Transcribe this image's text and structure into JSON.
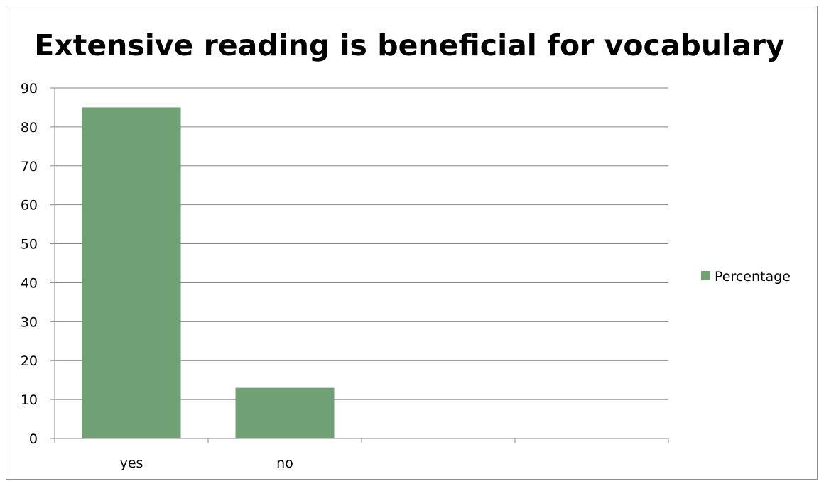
{
  "chart_data": {
    "type": "bar",
    "title": "Extensive reading is beneficial for vocabulary",
    "categories": [
      "yes",
      "no"
    ],
    "series": [
      {
        "name": "Percentage",
        "values": [
          85,
          13
        ],
        "color": "#70a175"
      }
    ],
    "ylim": [
      0,
      90
    ],
    "yticks": [
      0,
      10,
      20,
      30,
      40,
      50,
      60,
      70,
      80,
      90
    ],
    "grid": true,
    "legend": "right",
    "xlabel": "",
    "ylabel": ""
  }
}
